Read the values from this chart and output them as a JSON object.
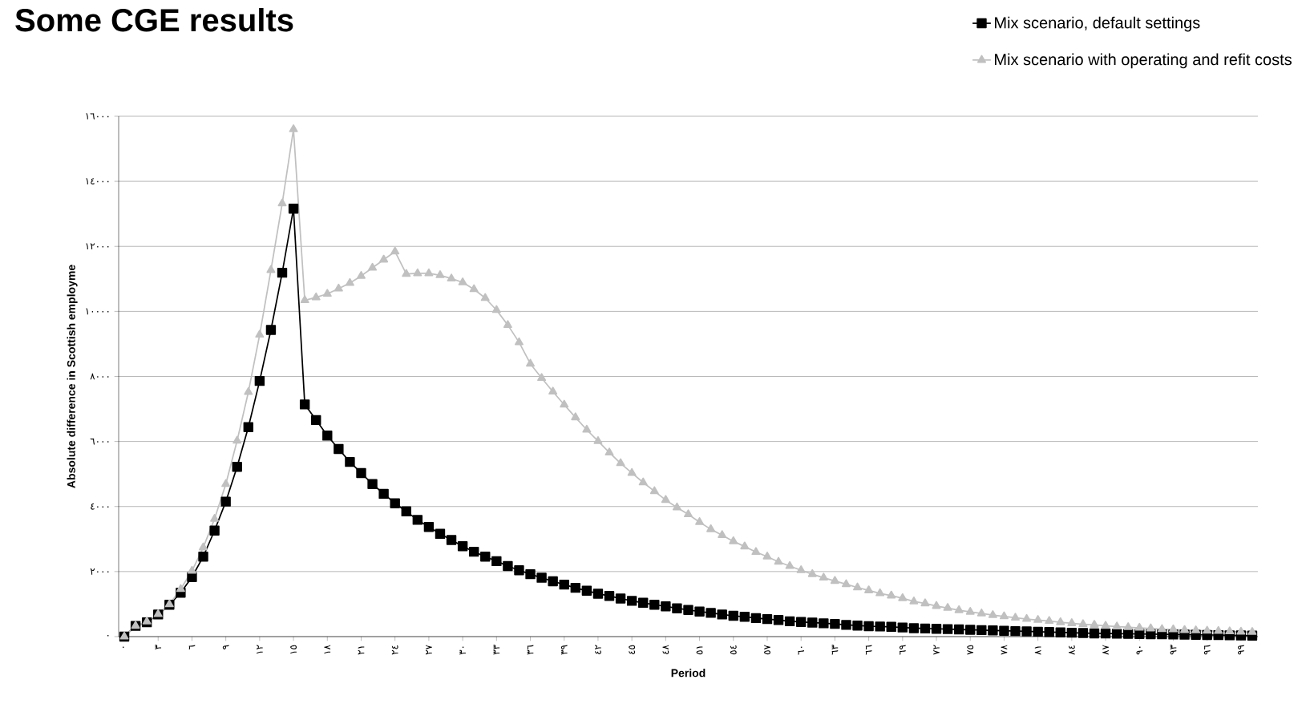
{
  "chart_data": {
    "type": "line",
    "title": "Some CGE results",
    "xlabel": "Period",
    "ylabel": "Absolute difference in Scottish employme",
    "x": [
      0,
      1,
      2,
      3,
      4,
      5,
      6,
      7,
      8,
      9,
      10,
      11,
      12,
      13,
      14,
      15,
      16,
      17,
      18,
      19,
      20,
      21,
      22,
      23,
      24,
      25,
      26,
      27,
      28,
      29,
      30,
      31,
      32,
      33,
      34,
      35,
      36,
      37,
      38,
      39,
      40,
      41,
      42,
      43,
      44,
      45,
      46,
      47,
      48,
      49,
      50,
      51,
      52,
      53,
      54,
      55,
      56,
      57,
      58,
      59,
      60,
      61,
      62,
      63,
      64,
      65,
      66,
      67,
      68,
      69,
      70,
      71,
      72,
      73,
      74,
      75,
      76,
      77,
      78,
      79,
      80,
      81,
      82,
      83,
      84,
      85,
      86,
      87,
      88,
      89,
      90,
      91,
      92,
      93,
      94,
      95,
      96,
      97,
      98,
      99,
      100
    ],
    "series": [
      {
        "name": "Mix scenario, default settings",
        "color": "#000000",
        "marker": "square",
        "values": [
          0,
          330,
          440,
          680,
          980,
          1350,
          1830,
          2460,
          3260,
          4150,
          5220,
          6440,
          7860,
          9430,
          11190,
          13160,
          7140,
          6660,
          6180,
          5770,
          5370,
          5030,
          4690,
          4390,
          4100,
          3850,
          3590,
          3370,
          3160,
          2970,
          2780,
          2610,
          2460,
          2320,
          2170,
          2040,
          1920,
          1810,
          1700,
          1600,
          1500,
          1410,
          1320,
          1250,
          1170,
          1100,
          1040,
          980,
          930,
          870,
          820,
          770,
          730,
          680,
          640,
          610,
          570,
          540,
          510,
          470,
          450,
          430,
          410,
          390,
          360,
          340,
          320,
          310,
          300,
          280,
          260,
          250,
          240,
          230,
          220,
          210,
          200,
          190,
          180,
          170,
          160,
          150,
          140,
          130,
          120,
          110,
          100,
          95,
          90,
          85,
          80,
          75,
          70,
          65,
          60,
          55,
          50,
          45,
          40,
          35,
          30
        ]
      },
      {
        "name": "Mix scenario with operating and refit costs",
        "color": "#c0c0c0",
        "marker": "triangle",
        "values": [
          0,
          330,
          460,
          690,
          990,
          1460,
          2020,
          2740,
          3620,
          4690,
          6020,
          7520,
          9280,
          11270,
          13320,
          15600,
          10340,
          10430,
          10540,
          10700,
          10870,
          11090,
          11340,
          11590,
          11840,
          11150,
          11170,
          11170,
          11110,
          11010,
          10890,
          10680,
          10410,
          10040,
          9580,
          9050,
          8390,
          7950,
          7530,
          7130,
          6740,
          6360,
          6010,
          5660,
          5330,
          5030,
          4740,
          4470,
          4200,
          3970,
          3760,
          3520,
          3300,
          3120,
          2930,
          2770,
          2600,
          2460,
          2300,
          2170,
          2040,
          1920,
          1810,
          1710,
          1610,
          1510,
          1420,
          1330,
          1260,
          1180,
          1080,
          1020,
          940,
          880,
          810,
          760,
          710,
          660,
          620,
          580,
          540,
          510,
          480,
          440,
          410,
          380,
          360,
          330,
          310,
          290,
          270,
          250,
          230,
          220,
          200,
          190,
          180,
          170,
          160,
          150,
          140
        ]
      }
    ],
    "xlim": [
      -0.5,
      100.5
    ],
    "xticks": [
      {
        "value": 0,
        "label": "٠"
      },
      {
        "value": 3,
        "label": "٣"
      },
      {
        "value": 6,
        "label": "٦"
      },
      {
        "value": 9,
        "label": "٩"
      },
      {
        "value": 12,
        "label": "١٢"
      },
      {
        "value": 15,
        "label": "١٥"
      },
      {
        "value": 18,
        "label": "١٨"
      },
      {
        "value": 21,
        "label": "٢١"
      },
      {
        "value": 24,
        "label": "٢٤"
      },
      {
        "value": 27,
        "label": "٢٧"
      },
      {
        "value": 30,
        "label": "٣٠"
      },
      {
        "value": 33,
        "label": "٣٣"
      },
      {
        "value": 36,
        "label": "٣٦"
      },
      {
        "value": 39,
        "label": "٣٩"
      },
      {
        "value": 42,
        "label": "٤٢"
      },
      {
        "value": 45,
        "label": "٤٥"
      },
      {
        "value": 48,
        "label": "٤٨"
      },
      {
        "value": 51,
        "label": "٥١"
      },
      {
        "value": 54,
        "label": "٥٤"
      },
      {
        "value": 57,
        "label": "٥٧"
      },
      {
        "value": 60,
        "label": "٦٠"
      },
      {
        "value": 63,
        "label": "٦٣"
      },
      {
        "value": 66,
        "label": "٦٦"
      },
      {
        "value": 69,
        "label": "٦٩"
      },
      {
        "value": 72,
        "label": "٧٢"
      },
      {
        "value": 75,
        "label": "٧٥"
      },
      {
        "value": 78,
        "label": "٧٨"
      },
      {
        "value": 81,
        "label": "٨١"
      },
      {
        "value": 84,
        "label": "٨٤"
      },
      {
        "value": 87,
        "label": "٨٧"
      },
      {
        "value": 90,
        "label": "٩٠"
      },
      {
        "value": 93,
        "label": "٩٣"
      },
      {
        "value": 96,
        "label": "٩٦"
      },
      {
        "value": 99,
        "label": "٩٩"
      }
    ],
    "ylim": [
      0,
      16000
    ],
    "yticks": [
      {
        "value": 0,
        "label": "٠"
      },
      {
        "value": 2000,
        "label": "٢٠٠٠"
      },
      {
        "value": 4000,
        "label": "٤٠٠٠"
      },
      {
        "value": 6000,
        "label": "٦٠٠٠"
      },
      {
        "value": 8000,
        "label": "٨٠٠٠"
      },
      {
        "value": 10000,
        "label": "١٠٠٠٠"
      },
      {
        "value": 12000,
        "label": "١٢٠٠٠"
      },
      {
        "value": 14000,
        "label": "١٤٠٠٠"
      },
      {
        "value": 16000,
        "label": "١٦٠٠٠"
      }
    ],
    "grid": "y",
    "legend": "top right",
    "line_style": "solid"
  }
}
